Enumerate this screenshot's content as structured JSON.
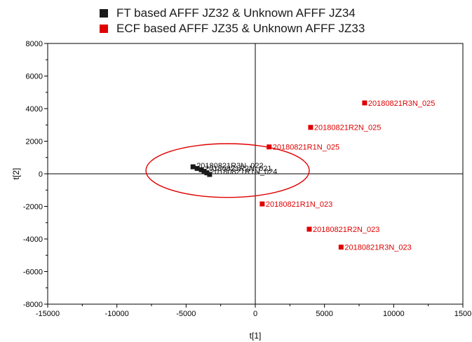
{
  "chart_data": {
    "type": "scatter",
    "title": "",
    "xlabel": "t[1]",
    "ylabel": "t[2]",
    "xlim": [
      -15000,
      15000
    ],
    "ylim": [
      -8000,
      8000
    ],
    "x_ticks": [
      "-15000",
      "-10000",
      "-5000",
      "0",
      "5000",
      "10000",
      "1500"
    ],
    "y_ticks": [
      "8000",
      "6000",
      "4000",
      "2000",
      "0",
      "-2000",
      "-4000",
      "-6000",
      "-8000"
    ],
    "legend_position": "top",
    "series": [
      {
        "name": "FT based AFFF JZ32 & Unknown AFFF JZ34",
        "color": "#1a1a1a",
        "points": [
          {
            "x": -4500,
            "y": 430,
            "label": "20180821R3N_022"
          },
          {
            "x": -4200,
            "y": 330,
            "label": ""
          },
          {
            "x": -3900,
            "y": 250,
            "label": "20180821R2N_021"
          },
          {
            "x": -3700,
            "y": 150,
            "label": ""
          },
          {
            "x": -3500,
            "y": 60,
            "label": "20180821R1N_024"
          },
          {
            "x": -3300,
            "y": -40,
            "label": ""
          }
        ]
      },
      {
        "name": "ECF based AFFF JZ35 & Unknown AFFF JZ33",
        "color": "#e00000",
        "points": [
          {
            "x": 7900,
            "y": 4350,
            "label": "20180821R3N_025"
          },
          {
            "x": 4000,
            "y": 2850,
            "label": "20180821R2N_025"
          },
          {
            "x": 1000,
            "y": 1650,
            "label": "20180821R1N_025"
          },
          {
            "x": 500,
            "y": -1850,
            "label": "20180821R1N_023"
          },
          {
            "x": 3900,
            "y": -3400,
            "label": "20180821R2N_023"
          },
          {
            "x": 6200,
            "y": -4500,
            "label": "20180821R3N_023"
          }
        ]
      }
    ],
    "annotations": [
      {
        "type": "ellipse",
        "color": "#e00000",
        "cx": -2000,
        "cy": 200,
        "rx": 5900,
        "ry": 1650
      }
    ]
  }
}
